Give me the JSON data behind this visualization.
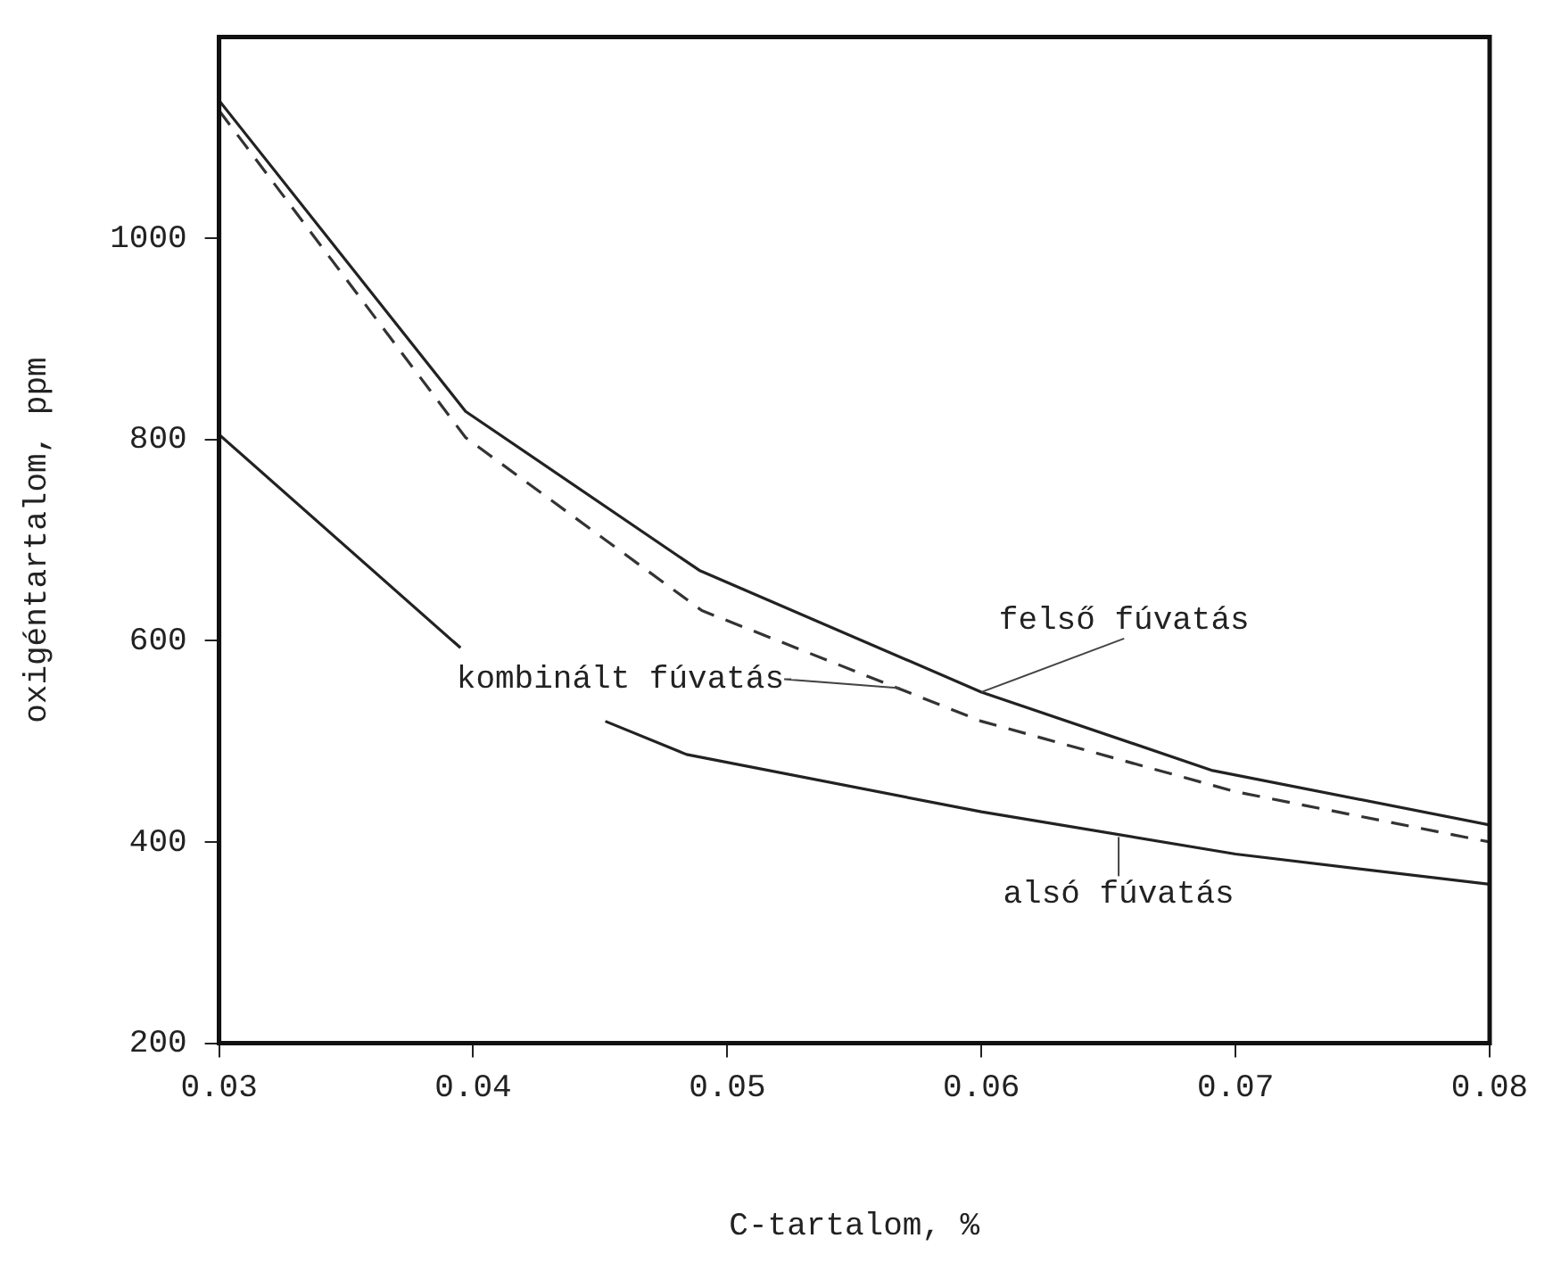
{
  "chart_data": {
    "type": "line",
    "xlabel": "C-tartalom, %",
    "ylabel": "oxigéntartalom, ppm",
    "xlim": [
      0.03,
      0.08
    ],
    "xticks": [
      {
        "value": 0.03,
        "label": "0.03"
      },
      {
        "value": 0.04,
        "label": "0.04"
      },
      {
        "value": 0.05,
        "label": "0.05"
      },
      {
        "value": 0.06,
        "label": "0.06"
      },
      {
        "value": 0.07,
        "label": "0.07"
      },
      {
        "value": 0.08,
        "label": "0.08"
      }
    ],
    "ylim": [
      200,
      1200
    ],
    "yticks": [
      200,
      400,
      600,
      800,
      1000
    ],
    "grid": false,
    "legend": false,
    "marker": "none",
    "series": [
      {
        "color": "#222222",
        "line_style": "solid",
        "x": [
          0.03,
          0.0397,
          0.0489,
          0.06,
          0.0691,
          0.08
        ],
        "values": [
          1137,
          828,
          670,
          549,
          471,
          417
        ]
      },
      {
        "color": "#333333",
        "line_style": "dashed",
        "x": [
          0.03,
          0.0397,
          0.049,
          0.06,
          0.07,
          0.08
        ],
        "values": [
          1127,
          802,
          630,
          520,
          450,
          400
        ]
      },
      {
        "color": "#222222",
        "line_style": "solid",
        "x": [
          0.03,
          0.0395,
          0.042,
          0.0452,
          0.0484,
          0.06,
          0.07,
          0.08
        ],
        "values": [
          805,
          593,
          null,
          520,
          487,
          430,
          388,
          358
        ]
      }
    ],
    "annotations": [
      {
        "text": "felső fúvatás",
        "x": 0.06,
        "y": 549
      },
      {
        "text": "kombinált fúvatás",
        "x": 0.0568,
        "y": 553
      },
      {
        "text": "alsó fúvatás",
        "x": 0.0654,
        "y": 405
      }
    ]
  }
}
